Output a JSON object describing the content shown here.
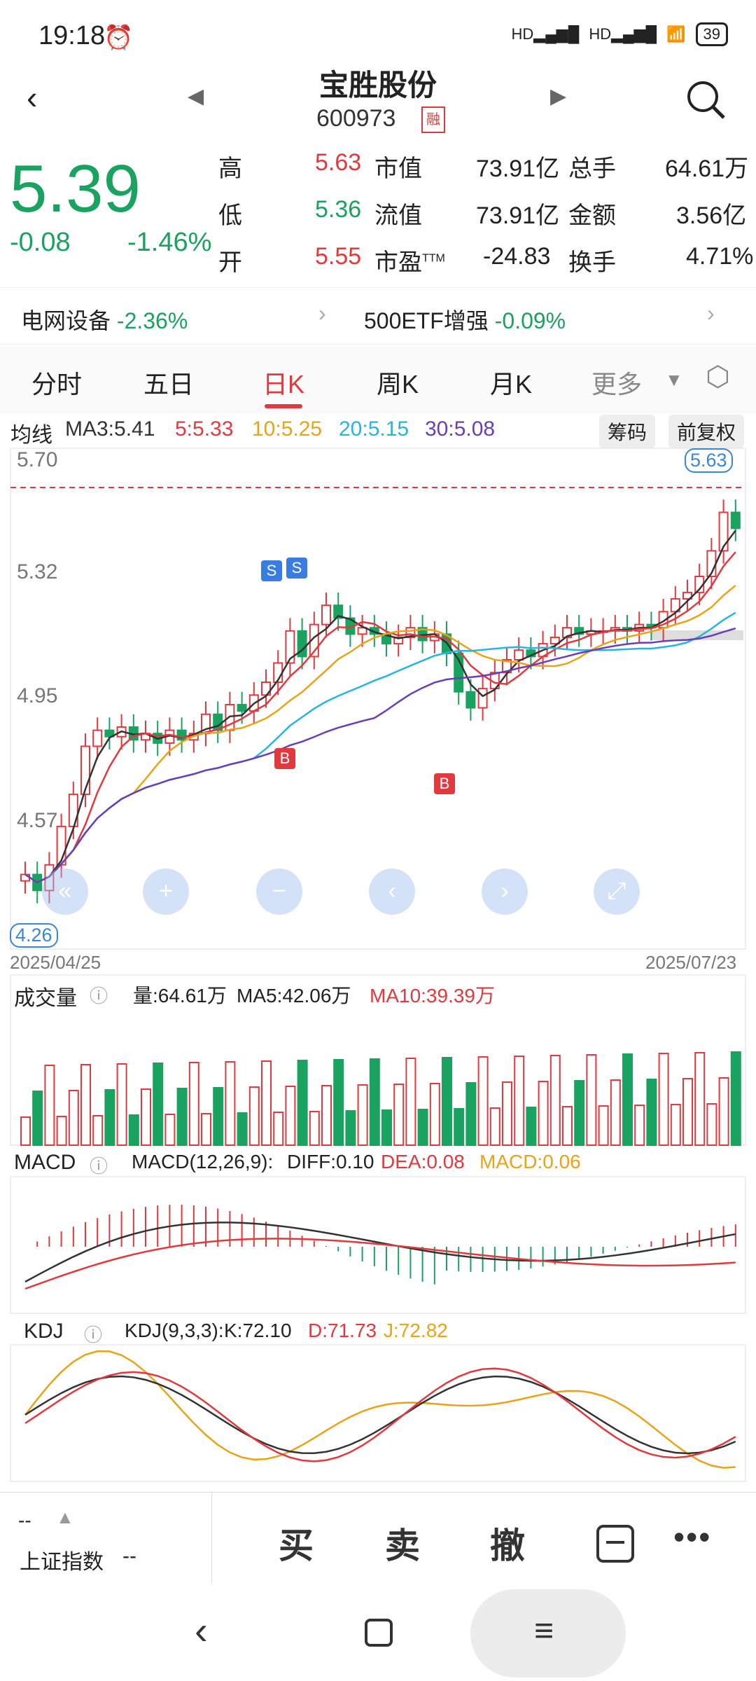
{
  "status": {
    "time": "19:18",
    "battery": "39",
    "net1": "HD",
    "net2": "HD"
  },
  "header": {
    "title": "宝胜股份",
    "code": "600973",
    "badge": "融"
  },
  "quote": {
    "price": "5.39",
    "change": "-0.08",
    "change_pct": "-1.46%",
    "stats": [
      {
        "label": "高",
        "value": "5.63",
        "color": "red"
      },
      {
        "label": "低",
        "value": "5.36",
        "color": "green"
      },
      {
        "label": "开",
        "value": "5.55",
        "color": "red"
      }
    ],
    "stats2": [
      {
        "label": "市值",
        "value": "73.91亿"
      },
      {
        "label": "流值",
        "value": "73.91亿"
      },
      {
        "label": "市盈",
        "sup": "TTM",
        "value": "-24.83"
      }
    ],
    "stats3": [
      {
        "label": "总手",
        "value": "64.61万"
      },
      {
        "label": "金额",
        "value": "3.56亿"
      },
      {
        "label": "换手",
        "value": "4.71%"
      }
    ]
  },
  "sectors": [
    {
      "name": "电网设备",
      "pct": "-2.36%"
    },
    {
      "name": "500ETF增强",
      "pct": "-0.09%"
    }
  ],
  "tabs": [
    "分时",
    "五日",
    "日K",
    "周K",
    "月K",
    "更多"
  ],
  "active_tab": "日K",
  "ma_legend": {
    "label": "均线",
    "ma3": "MA3:5.41",
    "ma5": "5:5.33",
    "ma10": "10:5.25",
    "ma20": "20:5.15",
    "ma30": "30:5.08"
  },
  "chip_btn": "筹码",
  "adj_btn": "前复权",
  "price_axis": [
    "5.70",
    "5.32",
    "4.95",
    "4.57"
  ],
  "high_tag": "5.63",
  "low_tag": "4.26",
  "date_start": "2025/04/25",
  "date_end": "2025/07/23",
  "volume": {
    "label": "成交量",
    "vol": "量:64.61万",
    "ma5": "MA5:42.06万",
    "ma10": "MA10:39.39万"
  },
  "macd": {
    "label": "MACD",
    "params": "MACD(12,26,9):",
    "diff": "DIFF:0.10",
    "dea": "DEA:0.08",
    "macd": "MACD:0.06"
  },
  "kdj": {
    "label": "KDJ",
    "params": "KDJ(9,3,3):",
    "k": "K:72.10",
    "d": "D:71.73",
    "j": "J:72.82"
  },
  "bottom": {
    "index_val": "--",
    "index_name": "上证指数",
    "index_chg": "--",
    "buy": "买",
    "sell": "卖",
    "cancel": "撤"
  },
  "signals": {
    "s": "S",
    "b": "B"
  },
  "colors": {
    "up": "#e0393e",
    "down": "#1aa260",
    "ma3": "#333333",
    "ma5": "#e0393e",
    "ma10": "#e8a317",
    "ma20": "#26b5e0",
    "ma30": "#6a3fb5"
  }
}
